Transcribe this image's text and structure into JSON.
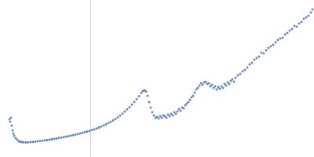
{
  "chart_data": {
    "type": "scatter",
    "x": [
      12,
      13,
      14,
      15,
      16,
      17,
      18,
      20,
      22,
      24,
      26,
      28,
      30,
      33,
      36,
      39,
      42,
      45,
      48,
      51,
      54,
      57,
      60,
      63,
      66,
      69,
      72,
      75,
      78,
      81,
      84,
      87,
      90,
      93,
      96,
      99,
      102,
      105,
      108,
      111,
      114,
      117,
      120,
      123,
      126,
      129,
      132,
      135,
      138,
      141,
      144,
      147,
      150,
      153,
      156,
      159,
      162,
      165,
      168,
      171,
      174,
      177,
      180,
      182,
      184,
      186,
      188,
      190,
      192,
      194,
      196,
      198,
      200,
      202,
      204,
      206,
      208,
      210,
      212,
      214,
      216,
      218,
      220,
      222,
      224,
      226,
      228,
      230,
      232,
      234,
      236,
      238,
      240,
      242,
      244,
      246,
      248,
      250,
      252,
      254,
      256,
      258,
      260,
      262,
      264,
      266,
      268,
      270,
      272,
      274,
      276,
      278,
      280,
      282,
      284,
      286,
      288,
      290,
      292,
      294,
      296,
      298,
      300,
      303,
      306,
      309,
      312,
      315,
      318,
      321,
      324,
      327,
      330,
      333,
      336,
      339,
      342,
      345,
      348,
      351,
      354,
      357,
      360,
      363,
      366,
      369,
      372,
      375,
      378,
      381,
      384,
      387,
      390,
      393,
      396,
      398
    ],
    "values": [
      48,
      45,
      50,
      40,
      34,
      30,
      27,
      24,
      22,
      20,
      19.5,
      19,
      18.8,
      18.6,
      18.7,
      19,
      19.2,
      19.5,
      20,
      20.3,
      20.7,
      21.2,
      21.6,
      22.1,
      22.6,
      23.1,
      23.6,
      24.2,
      24.8,
      25.3,
      26,
      26.5,
      27.2,
      27.8,
      28.5,
      29.3,
      30,
      30.8,
      31.6,
      32.4,
      33.3,
      34.2,
      35.2,
      36.3,
      37.6,
      38.8,
      40.2,
      41.6,
      43.2,
      44.8,
      46.6,
      48.5,
      50.5,
      52.8,
      55.3,
      57.9,
      60.8,
      63.5,
      66.8,
      70.2,
      73.8,
      77.5,
      81.5,
      84,
      85,
      83.5,
      78,
      70,
      63,
      57,
      53,
      50,
      51,
      49,
      52,
      50,
      53,
      52,
      50,
      54,
      52,
      55,
      53,
      57,
      55,
      58,
      61,
      59,
      63,
      62,
      66,
      68,
      70,
      73,
      76,
      78,
      82,
      86,
      88,
      91,
      94,
      92,
      95,
      96,
      93,
      94,
      90,
      92,
      88,
      90,
      86,
      89,
      87,
      90,
      88,
      93,
      91,
      95,
      93,
      97,
      99,
      96,
      101,
      104,
      106,
      109,
      111,
      114,
      118,
      120,
      124,
      126,
      128,
      133,
      132,
      136,
      139,
      141,
      143,
      146,
      149,
      151,
      152,
      156,
      158,
      161,
      163,
      167,
      166,
      170,
      172,
      176,
      178,
      180,
      184,
      188
    ],
    "color": "#3d68bb",
    "marker": "circle",
    "xlim": [
      0,
      400
    ],
    "ylim": [
      0,
      200
    ],
    "vlines": [
      115
    ],
    "grid": false,
    "tick_labels": false
  }
}
